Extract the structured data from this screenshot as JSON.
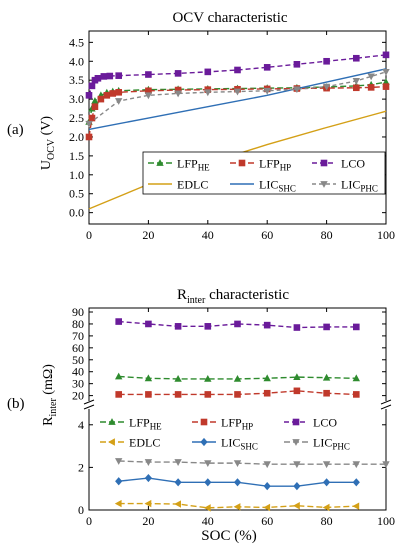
{
  "chart_data": [
    {
      "panel_label": "(a)",
      "type": "line",
      "title": "OCV characteristic",
      "ylabel_main": "U",
      "ylabel_sub": "OCV",
      "ylabel_unit": " (V)",
      "xlim": [
        0,
        100
      ],
      "ylim": [
        -0.3,
        4.8
      ],
      "xticks": [
        0,
        20,
        40,
        60,
        80,
        100
      ],
      "yticks": [
        0.0,
        0.5,
        1.0,
        1.5,
        2.0,
        2.5,
        3.0,
        3.5,
        4.0,
        4.5
      ],
      "legend_position": "bottom-center",
      "series": [
        {
          "name": "LFP",
          "name_sub": "HE",
          "color": "#2e8b2e",
          "dash": "6,3",
          "marker": "triangle-up",
          "x": [
            0,
            1,
            2,
            4,
            6,
            8,
            10,
            20,
            30,
            40,
            50,
            60,
            70,
            80,
            90,
            95,
            100
          ],
          "y": [
            2.4,
            2.75,
            2.95,
            3.1,
            3.17,
            3.2,
            3.22,
            3.25,
            3.26,
            3.27,
            3.28,
            3.29,
            3.3,
            3.32,
            3.35,
            3.38,
            3.45
          ]
        },
        {
          "name": "LFP",
          "name_sub": "HP",
          "color": "#c0392b",
          "dash": "6,3",
          "marker": "square",
          "x": [
            0,
            1,
            2,
            4,
            6,
            8,
            10,
            20,
            30,
            40,
            50,
            60,
            70,
            80,
            90,
            95,
            100
          ],
          "y": [
            2.0,
            2.5,
            2.8,
            3.0,
            3.1,
            3.15,
            3.18,
            3.22,
            3.24,
            3.25,
            3.26,
            3.27,
            3.28,
            3.29,
            3.3,
            3.31,
            3.33
          ]
        },
        {
          "name": "LCO",
          "name_sub": "",
          "color": "#6a1b9a",
          "dash": "5,3",
          "marker": "square",
          "x": [
            0,
            1,
            2,
            3,
            5,
            7,
            10,
            20,
            30,
            40,
            50,
            60,
            70,
            80,
            90,
            100
          ],
          "y": [
            3.1,
            3.35,
            3.5,
            3.55,
            3.6,
            3.61,
            3.62,
            3.65,
            3.68,
            3.72,
            3.77,
            3.84,
            3.92,
            4.0,
            4.08,
            4.17
          ]
        },
        {
          "name": "EDLC",
          "name_sub": "",
          "color": "#d4a017",
          "dash": "",
          "marker": "none",
          "x": [
            0,
            20,
            40,
            60,
            80,
            100
          ],
          "y": [
            0.1,
            0.75,
            1.3,
            1.8,
            2.25,
            2.68
          ]
        },
        {
          "name": "LIC",
          "name_sub": "SHC",
          "color": "#2f6fb5",
          "dash": "",
          "marker": "none",
          "x": [
            0,
            20,
            40,
            60,
            80,
            100
          ],
          "y": [
            2.2,
            2.5,
            2.8,
            3.1,
            3.45,
            3.8
          ]
        },
        {
          "name": "LIC",
          "name_sub": "PHC",
          "color": "#888888",
          "dash": "4,3",
          "marker": "triangle-down",
          "x": [
            0,
            10,
            20,
            30,
            40,
            50,
            60,
            70,
            80,
            90,
            95,
            100
          ],
          "y": [
            2.35,
            2.95,
            3.1,
            3.15,
            3.18,
            3.2,
            3.22,
            3.26,
            3.33,
            3.48,
            3.6,
            3.72
          ]
        }
      ]
    },
    {
      "panel_label": "(b)",
      "type": "line",
      "title": "R",
      "title_sub": "inter",
      "title_rest": " characteristic",
      "ylabel_main": "R",
      "ylabel_sub": "inter",
      "ylabel_unit": " (mΩ)",
      "xlabel": "SOC (%)",
      "xlim": [
        0,
        100
      ],
      "ylim_upper": [
        18,
        90
      ],
      "ylim_lower": [
        0,
        4.6
      ],
      "xticks": [
        0,
        20,
        40,
        60,
        80,
        100
      ],
      "yticks_upper": [
        20,
        30,
        40,
        50,
        60,
        70,
        80,
        90
      ],
      "yticks_lower": [
        0,
        2,
        4
      ],
      "axis_break": true,
      "legend_position": "lower-middle",
      "series": [
        {
          "name": "LFP",
          "name_sub": "HE",
          "color": "#2e8b2e",
          "dash": "6,3",
          "marker": "triangle-up",
          "x": [
            10,
            20,
            30,
            40,
            50,
            60,
            70,
            80,
            90
          ],
          "y": [
            36,
            34.5,
            34,
            34,
            34,
            34.5,
            35.5,
            35,
            34.5
          ]
        },
        {
          "name": "LFP",
          "name_sub": "HP",
          "color": "#c0392b",
          "dash": "6,3",
          "marker": "square",
          "x": [
            10,
            20,
            30,
            40,
            50,
            60,
            70,
            80,
            90
          ],
          "y": [
            21,
            21,
            21,
            21,
            21,
            22,
            24,
            22,
            21
          ]
        },
        {
          "name": "LCO",
          "name_sub": "",
          "color": "#6a1b9a",
          "dash": "5,3",
          "marker": "square",
          "x": [
            10,
            20,
            30,
            40,
            50,
            60,
            70,
            80,
            90
          ],
          "y": [
            82,
            80,
            78,
            78,
            80,
            79,
            77,
            77.5,
            77.5
          ]
        },
        {
          "name": "EDLC",
          "name_sub": "",
          "color": "#d4a017",
          "dash": "6,3",
          "marker": "triangle-left",
          "x": [
            10,
            20,
            30,
            40,
            50,
            60,
            70,
            80,
            90
          ],
          "y": [
            0.3,
            0.3,
            0.28,
            0.1,
            0.15,
            0.12,
            0.2,
            0.12,
            0.18
          ]
        },
        {
          "name": "LIC",
          "name_sub": "SHC",
          "color": "#2f6fb5",
          "dash": "",
          "marker": "diamond",
          "x": [
            10,
            20,
            30,
            40,
            50,
            60,
            70,
            80,
            90
          ],
          "y": [
            1.35,
            1.5,
            1.3,
            1.3,
            1.3,
            1.12,
            1.12,
            1.3,
            1.3
          ]
        },
        {
          "name": "LIC",
          "name_sub": "PHC",
          "color": "#888888",
          "dash": "6,3",
          "marker": "triangle-down",
          "x": [
            10,
            20,
            30,
            40,
            50,
            60,
            70,
            80,
            90,
            100
          ],
          "y": [
            2.3,
            2.25,
            2.25,
            2.2,
            2.2,
            2.15,
            2.15,
            2.15,
            2.15,
            2.15
          ]
        }
      ]
    }
  ]
}
